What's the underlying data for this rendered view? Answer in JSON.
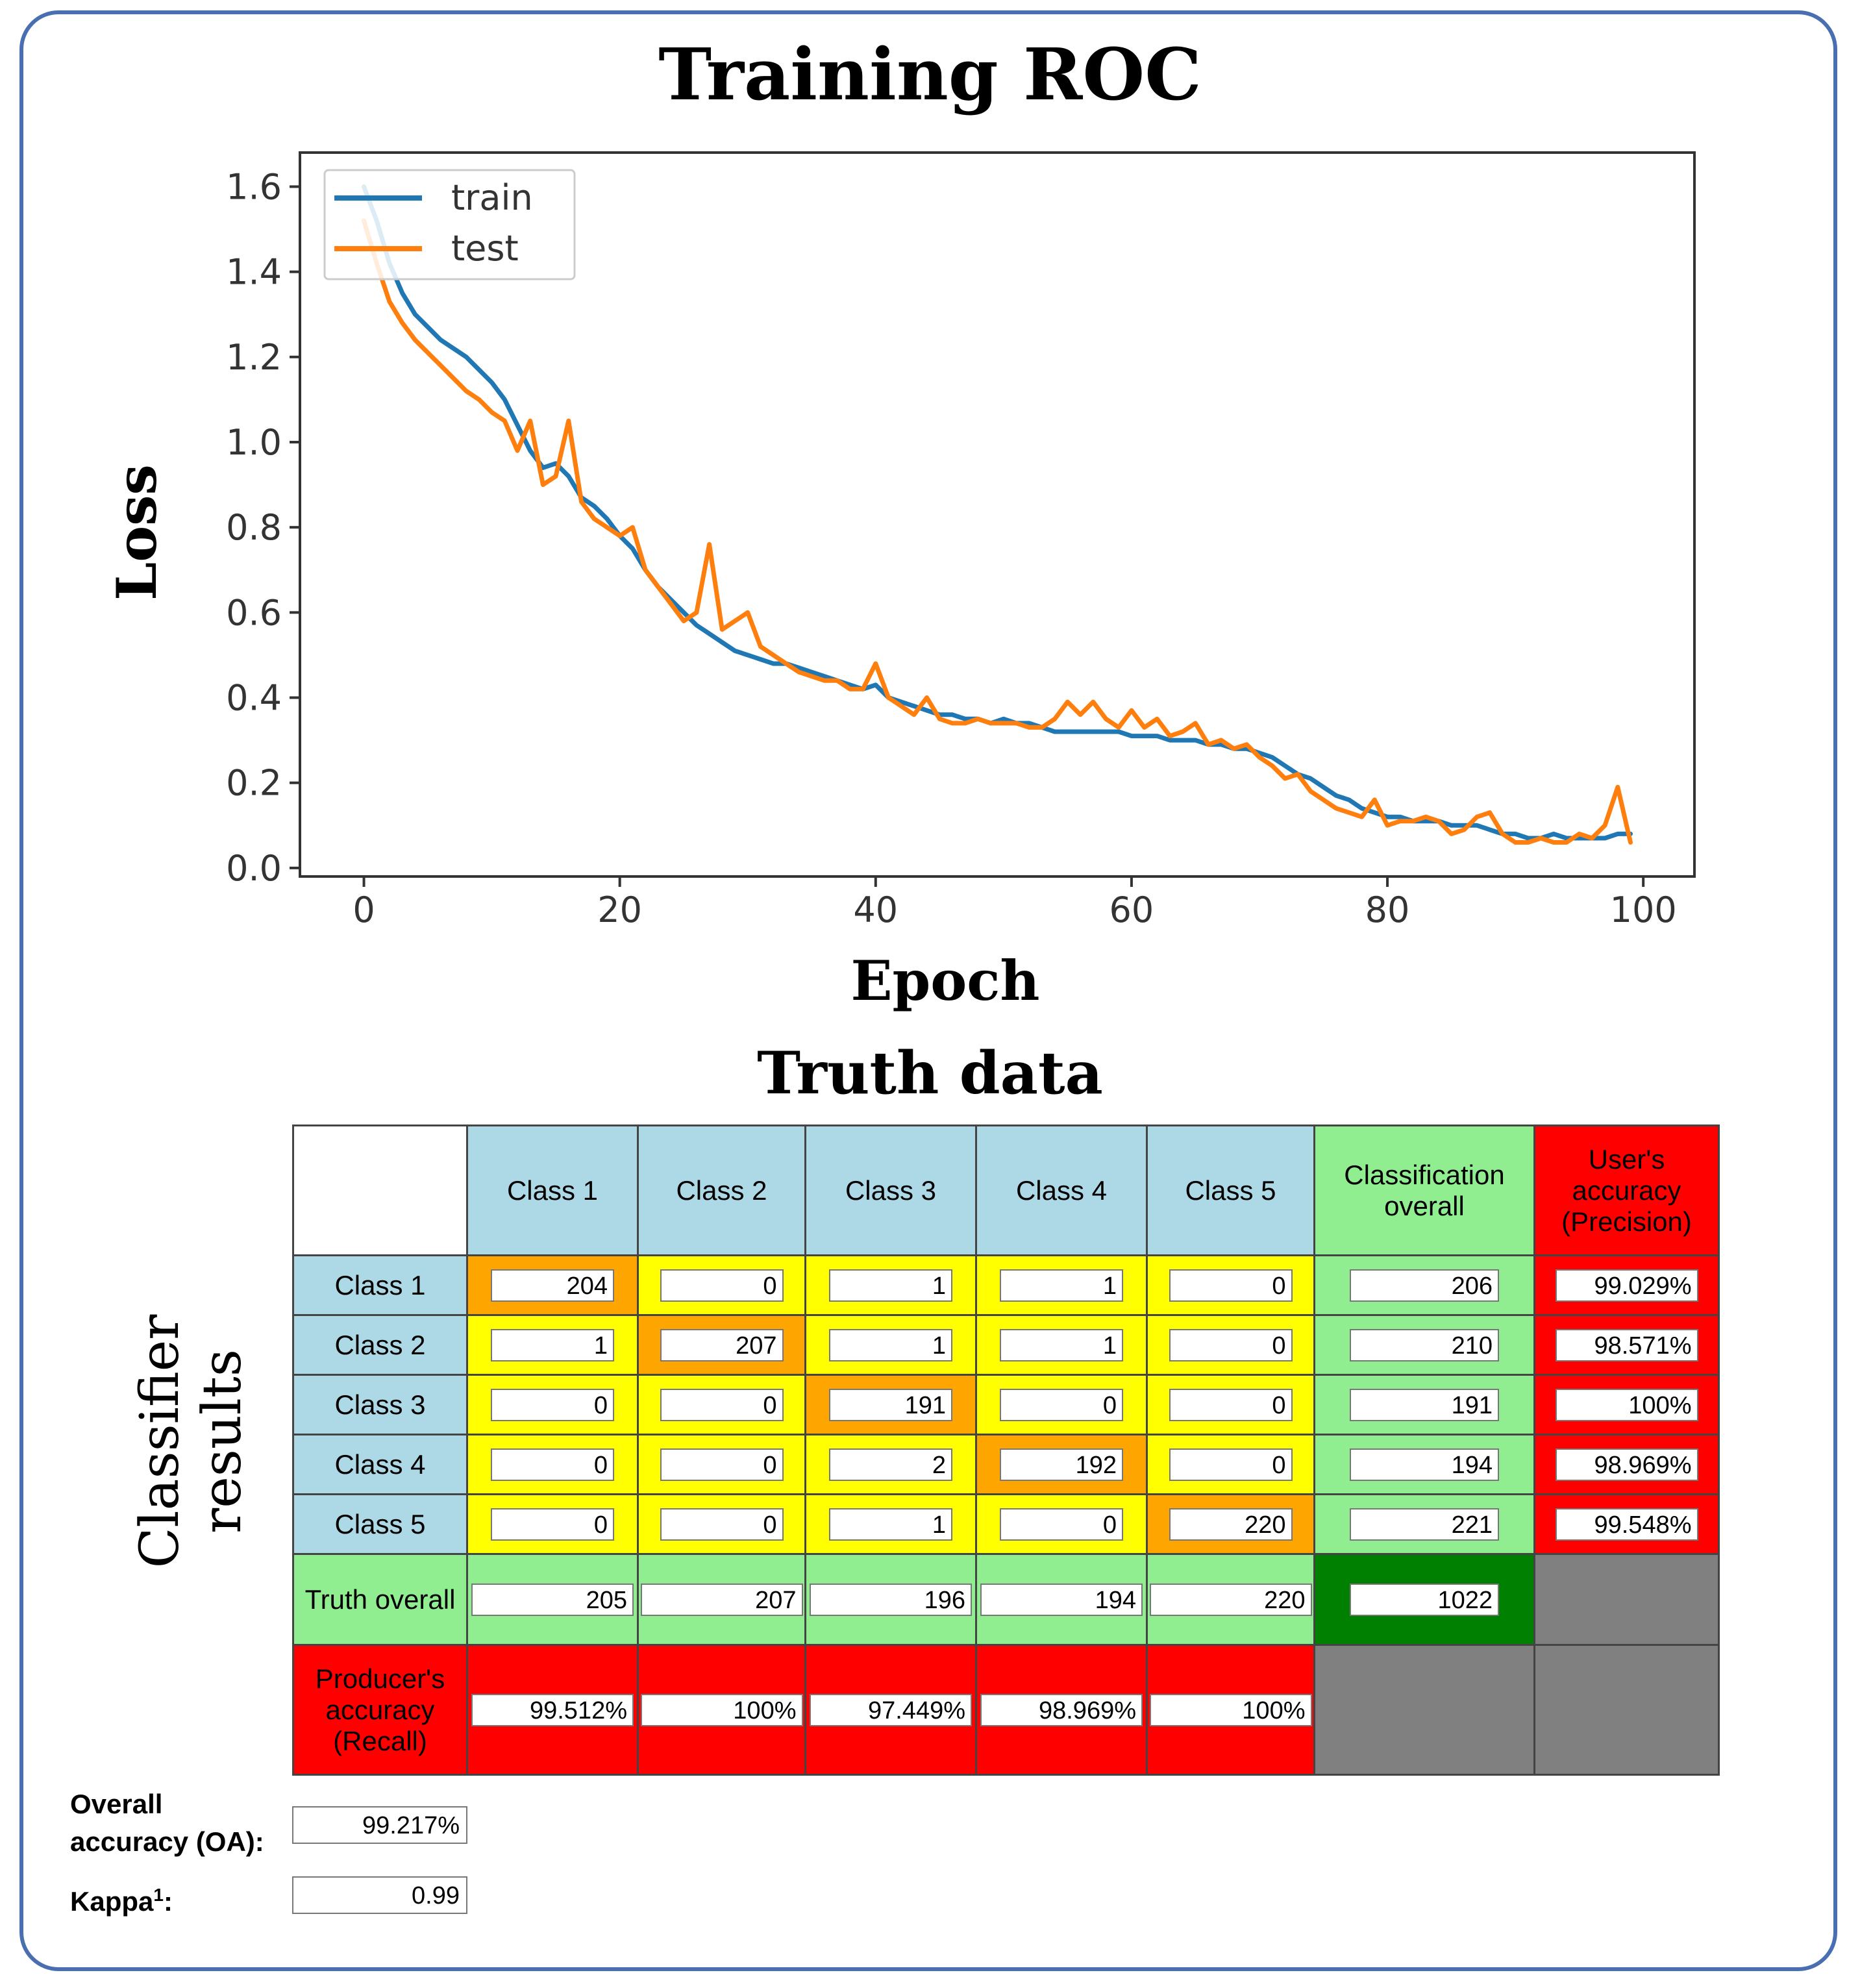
{
  "chart_data": {
    "type": "line",
    "title": "Training ROC",
    "xlabel": "Epoch",
    "ylabel": "Loss",
    "xlim": [
      -5,
      104
    ],
    "ylim": [
      -0.02,
      1.68
    ],
    "xticks": [
      "0",
      "20",
      "40",
      "60",
      "80",
      "100"
    ],
    "yticks": [
      "0.0",
      "0.2",
      "0.4",
      "0.6",
      "0.8",
      "1.0",
      "1.2",
      "1.4",
      "1.6"
    ],
    "legend_position": "top-left",
    "colors": {
      "train": "#1f77b4",
      "test": "#ff7f0e"
    },
    "series": [
      {
        "name": "train",
        "x": [
          0,
          1,
          2,
          3,
          4,
          5,
          6,
          7,
          8,
          9,
          10,
          11,
          12,
          13,
          14,
          15,
          16,
          17,
          18,
          19,
          20,
          21,
          22,
          23,
          24,
          25,
          26,
          27,
          28,
          29,
          30,
          31,
          32,
          33,
          34,
          35,
          36,
          37,
          38,
          39,
          40,
          41,
          42,
          43,
          44,
          45,
          46,
          47,
          48,
          49,
          50,
          51,
          52,
          53,
          54,
          55,
          56,
          57,
          58,
          59,
          60,
          61,
          62,
          63,
          64,
          65,
          66,
          67,
          68,
          69,
          70,
          71,
          72,
          73,
          74,
          75,
          76,
          77,
          78,
          79,
          80,
          81,
          82,
          83,
          84,
          85,
          86,
          87,
          88,
          89,
          90,
          91,
          92,
          93,
          94,
          95,
          96,
          97,
          98,
          99
        ],
        "values": [
          1.6,
          1.52,
          1.42,
          1.35,
          1.3,
          1.27,
          1.24,
          1.22,
          1.2,
          1.17,
          1.14,
          1.1,
          1.04,
          0.98,
          0.94,
          0.95,
          0.92,
          0.87,
          0.85,
          0.82,
          0.78,
          0.75,
          0.7,
          0.66,
          0.63,
          0.6,
          0.57,
          0.55,
          0.53,
          0.51,
          0.5,
          0.49,
          0.48,
          0.48,
          0.47,
          0.46,
          0.45,
          0.44,
          0.43,
          0.42,
          0.43,
          0.4,
          0.39,
          0.38,
          0.37,
          0.36,
          0.36,
          0.35,
          0.35,
          0.34,
          0.35,
          0.34,
          0.34,
          0.33,
          0.32,
          0.32,
          0.32,
          0.32,
          0.32,
          0.32,
          0.31,
          0.31,
          0.31,
          0.3,
          0.3,
          0.3,
          0.29,
          0.29,
          0.28,
          0.28,
          0.27,
          0.26,
          0.24,
          0.22,
          0.21,
          0.19,
          0.17,
          0.16,
          0.14,
          0.13,
          0.12,
          0.12,
          0.11,
          0.11,
          0.11,
          0.1,
          0.1,
          0.1,
          0.09,
          0.08,
          0.08,
          0.07,
          0.07,
          0.08,
          0.07,
          0.07,
          0.07,
          0.07,
          0.08,
          0.08
        ]
      },
      {
        "name": "test",
        "x": [
          0,
          1,
          2,
          3,
          4,
          5,
          6,
          7,
          8,
          9,
          10,
          11,
          12,
          13,
          14,
          15,
          16,
          17,
          18,
          19,
          20,
          21,
          22,
          23,
          24,
          25,
          26,
          27,
          28,
          29,
          30,
          31,
          32,
          33,
          34,
          35,
          36,
          37,
          38,
          39,
          40,
          41,
          42,
          43,
          44,
          45,
          46,
          47,
          48,
          49,
          50,
          51,
          52,
          53,
          54,
          55,
          56,
          57,
          58,
          59,
          60,
          61,
          62,
          63,
          64,
          65,
          66,
          67,
          68,
          69,
          70,
          71,
          72,
          73,
          74,
          75,
          76,
          77,
          78,
          79,
          80,
          81,
          82,
          83,
          84,
          85,
          86,
          87,
          88,
          89,
          90,
          91,
          92,
          93,
          94,
          95,
          96,
          97,
          98,
          99
        ],
        "values": [
          1.52,
          1.42,
          1.33,
          1.28,
          1.24,
          1.21,
          1.18,
          1.15,
          1.12,
          1.1,
          1.07,
          1.05,
          0.98,
          1.05,
          0.9,
          0.92,
          1.05,
          0.86,
          0.82,
          0.8,
          0.78,
          0.8,
          0.7,
          0.66,
          0.62,
          0.58,
          0.6,
          0.76,
          0.56,
          0.58,
          0.6,
          0.52,
          0.5,
          0.48,
          0.46,
          0.45,
          0.44,
          0.44,
          0.42,
          0.42,
          0.48,
          0.4,
          0.38,
          0.36,
          0.4,
          0.35,
          0.34,
          0.34,
          0.35,
          0.34,
          0.34,
          0.34,
          0.33,
          0.33,
          0.35,
          0.39,
          0.36,
          0.39,
          0.35,
          0.33,
          0.37,
          0.33,
          0.35,
          0.31,
          0.32,
          0.34,
          0.29,
          0.3,
          0.28,
          0.29,
          0.26,
          0.24,
          0.21,
          0.22,
          0.18,
          0.16,
          0.14,
          0.13,
          0.12,
          0.16,
          0.1,
          0.11,
          0.11,
          0.12,
          0.11,
          0.08,
          0.09,
          0.12,
          0.13,
          0.08,
          0.06,
          0.06,
          0.07,
          0.06,
          0.06,
          0.08,
          0.07,
          0.1,
          0.19,
          0.06
        ]
      }
    ]
  },
  "confusion_matrix": {
    "title": "Truth data",
    "row_axis_label_line1": "Classifier",
    "row_axis_label_line2": "results",
    "corner": "",
    "col_headers": [
      "Class 1",
      "Class 2",
      "Class 3",
      "Class 4",
      "Class 5"
    ],
    "classification_overall_header": "Classification overall",
    "users_accuracy_header": "User's accuracy (Precision)",
    "rows": [
      {
        "label": "Class 1",
        "cells": [
          "204",
          "0",
          "1",
          "1",
          "0"
        ],
        "total": "206",
        "users_accuracy": "99.029%"
      },
      {
        "label": "Class 2",
        "cells": [
          "1",
          "207",
          "1",
          "1",
          "0"
        ],
        "total": "210",
        "users_accuracy": "98.571%"
      },
      {
        "label": "Class 3",
        "cells": [
          "0",
          "0",
          "191",
          "0",
          "0"
        ],
        "total": "191",
        "users_accuracy": "100%"
      },
      {
        "label": "Class 4",
        "cells": [
          "0",
          "0",
          "2",
          "192",
          "0"
        ],
        "total": "194",
        "users_accuracy": "98.969%"
      },
      {
        "label": "Class 5",
        "cells": [
          "0",
          "0",
          "1",
          "0",
          "220"
        ],
        "total": "221",
        "users_accuracy": "99.548%"
      }
    ],
    "truth_overall_label": "Truth overall",
    "truth_overall": [
      "205",
      "207",
      "196",
      "194",
      "220"
    ],
    "grand_total": "1022",
    "producers_accuracy_label": "Producer's accuracy (Recall)",
    "producers_accuracy": [
      "99.512%",
      "100%",
      "97.449%",
      "98.969%",
      "100%"
    ]
  },
  "stats": {
    "oa_label_line1": "Overall",
    "oa_label_line2": "accuracy (OA):",
    "oa_value": "99.217%",
    "kappa_label": "Kappa",
    "kappa_sup": "1",
    "kappa_colon": ":",
    "kappa_value": "0.99"
  }
}
